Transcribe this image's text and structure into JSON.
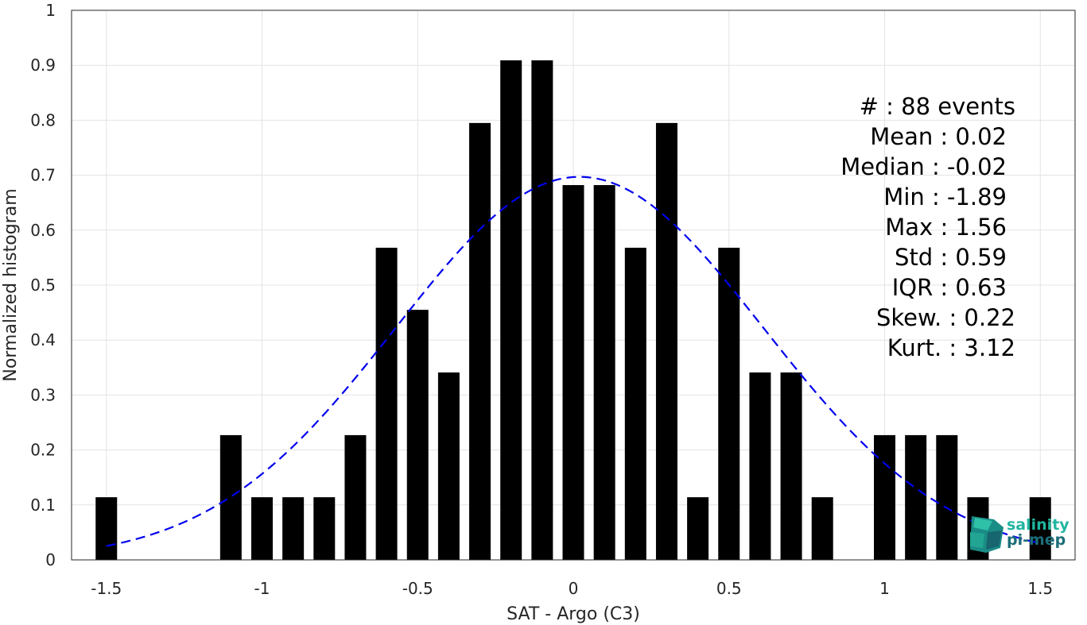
{
  "chart_data": {
    "type": "bar",
    "xlabel": "SAT - Argo (C3)",
    "ylabel": "Normalized histogram",
    "xlim": [
      -1.5,
      1.5
    ],
    "ylim": [
      0,
      1
    ],
    "grid": true,
    "xticks": [
      "-1.5",
      "-1",
      "-0.5",
      "0",
      "0.5",
      "1",
      "1.5"
    ],
    "yticks": [
      "0",
      "0.1",
      "0.2",
      "0.3",
      "0.4",
      "0.5",
      "0.6",
      "0.7",
      "0.8",
      "0.9",
      "1"
    ],
    "bars": [
      {
        "x": -1.5,
        "y": 0.114
      },
      {
        "x": -1.1,
        "y": 0.227
      },
      {
        "x": -1.0,
        "y": 0.114
      },
      {
        "x": -0.9,
        "y": 0.114
      },
      {
        "x": -0.8,
        "y": 0.114
      },
      {
        "x": -0.7,
        "y": 0.227
      },
      {
        "x": -0.6,
        "y": 0.568
      },
      {
        "x": -0.5,
        "y": 0.455
      },
      {
        "x": -0.4,
        "y": 0.341
      },
      {
        "x": -0.3,
        "y": 0.795
      },
      {
        "x": -0.2,
        "y": 0.909
      },
      {
        "x": -0.1,
        "y": 0.909
      },
      {
        "x": 0.0,
        "y": 0.682
      },
      {
        "x": 0.1,
        "y": 0.682
      },
      {
        "x": 0.2,
        "y": 0.568
      },
      {
        "x": 0.3,
        "y": 0.795
      },
      {
        "x": 0.4,
        "y": 0.114
      },
      {
        "x": 0.5,
        "y": 0.568
      },
      {
        "x": 0.6,
        "y": 0.341
      },
      {
        "x": 0.7,
        "y": 0.341
      },
      {
        "x": 0.8,
        "y": 0.114
      },
      {
        "x": 1.0,
        "y": 0.227
      },
      {
        "x": 1.1,
        "y": 0.227
      },
      {
        "x": 1.2,
        "y": 0.227
      },
      {
        "x": 1.3,
        "y": 0.114
      },
      {
        "x": 1.5,
        "y": 0.114
      }
    ],
    "bar_color": "#000000",
    "fit_curve": {
      "style": "dashed",
      "color": "#0000ee",
      "mean": 0.02,
      "std": 0.59,
      "peak": 0.697,
      "x_range": [
        -1.5,
        1.5
      ]
    },
    "stats": [
      "#  : 88 events",
      "Mean : 0.02",
      "Median : -0.02",
      "Min : -1.89",
      "Max : 1.56",
      "Std : 0.59",
      "IQR : 0.63",
      "Skew. : 0.22",
      "Kurt. : 3.12"
    ]
  },
  "logo": {
    "line1": "salinity",
    "line2": "pi-mep",
    "color1": "#1fb5a0",
    "color2": "#1b6e78"
  }
}
